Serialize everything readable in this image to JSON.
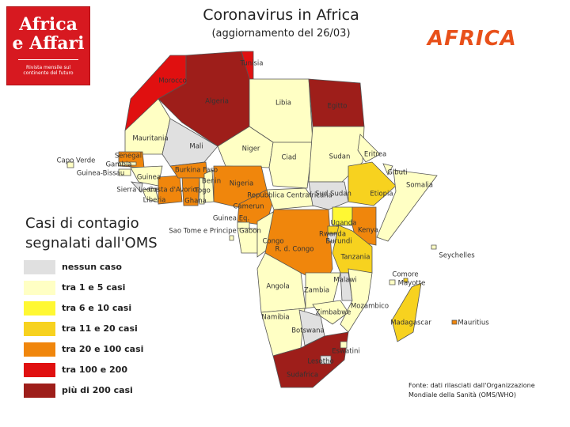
{
  "logo": {
    "title_line1": "Africa",
    "title_line2": "e Affari",
    "tagline": "Rivista mensile sul continente del futuro"
  },
  "brand": "AFRICA",
  "title": "Coronavirus in Africa",
  "subtitle": "(aggiornamento del 26/03)",
  "legend": {
    "title": "Casi di contagio segnalati dall'OMS",
    "items": [
      {
        "label": "nessun caso",
        "color": "#e0e0e0"
      },
      {
        "label": "tra 1 e 5 casi",
        "color": "#ffffc4"
      },
      {
        "label": "tra 6 e 10 casi",
        "color": "#fff833"
      },
      {
        "label": "tra 11 e 20 casi",
        "color": "#f7d21f"
      },
      {
        "label": "tra 20 e 100 casi",
        "color": "#f0860c"
      },
      {
        "label": "tra 100 e 200",
        "color": "#e01010"
      },
      {
        "label": "più di 200 casi",
        "color": "#9e1e1a"
      }
    ]
  },
  "countries": [
    {
      "label": "Morocco",
      "level": 5
    },
    {
      "label": "Algeria",
      "level": 6
    },
    {
      "label": "Tunisia",
      "level": 5
    },
    {
      "label": "Libia",
      "level": 1
    },
    {
      "label": "Egitto",
      "level": 6
    },
    {
      "label": "Mauritania",
      "level": 1
    },
    {
      "label": "Mali",
      "level": 0
    },
    {
      "label": "Niger",
      "level": 1
    },
    {
      "label": "Ciad",
      "level": 1
    },
    {
      "label": "Sudan",
      "level": 1
    },
    {
      "label": "Eritrea",
      "level": 1
    },
    {
      "label": "Etiopia",
      "level": 3
    },
    {
      "label": "Gibuti",
      "level": 1
    },
    {
      "label": "Somalia",
      "level": 1
    },
    {
      "label": "Senegal",
      "level": 4
    },
    {
      "label": "Gambia",
      "level": 1
    },
    {
      "label": "Guinea-Bissau",
      "level": 1
    },
    {
      "label": "Guinea",
      "level": 1
    },
    {
      "label": "Sierra Leone",
      "level": 0
    },
    {
      "label": "Liberia",
      "level": 1
    },
    {
      "label": "Costa d'Avorio",
      "level": 4
    },
    {
      "label": "Burkina Faso",
      "level": 4
    },
    {
      "label": "Ghana",
      "level": 4
    },
    {
      "label": "Togo",
      "level": 1
    },
    {
      "label": "Benin",
      "level": 1
    },
    {
      "label": "Nigeria",
      "level": 4
    },
    {
      "label": "Camerun",
      "level": 4
    },
    {
      "label": "Repubblica Centrafricana",
      "level": 1
    },
    {
      "label": "Sud Sudan",
      "level": 0
    },
    {
      "label": "Guinea Eq.",
      "level": 1
    },
    {
      "label": "Gabon",
      "level": 1
    },
    {
      "label": "Congo",
      "level": 1
    },
    {
      "label": "R. d. Congo",
      "level": 4
    },
    {
      "label": "Uganda",
      "level": 2
    },
    {
      "label": "Kenya",
      "level": 4
    },
    {
      "label": "Rwanda",
      "level": 3
    },
    {
      "label": "Burundi",
      "level": 0
    },
    {
      "label": "Tanzania",
      "level": 3
    },
    {
      "label": "Angola",
      "level": 1
    },
    {
      "label": "Zambia",
      "level": 1
    },
    {
      "label": "Malawi",
      "level": 0
    },
    {
      "label": "Mozambico",
      "level": 1
    },
    {
      "label": "Zimbabwe",
      "level": 1
    },
    {
      "label": "Namibia",
      "level": 1
    },
    {
      "label": "Botswana",
      "level": 0
    },
    {
      "label": "Sudafrica",
      "level": 6
    },
    {
      "label": "Lesotho",
      "level": 0
    },
    {
      "label": "Eswatini",
      "level": 1
    },
    {
      "label": "Madagascar",
      "level": 3
    },
    {
      "label": "Capo Verde",
      "level": 1
    },
    {
      "label": "Sao Tome e Principe",
      "level": 1
    },
    {
      "label": "Comore",
      "level": 1
    },
    {
      "label": "Mayotte",
      "level": 3
    },
    {
      "label": "Seychelles",
      "level": 1
    },
    {
      "label": "Mauritius",
      "level": 4
    }
  ],
  "source": "Fonte: dati rilasciati dall'Organizzazione Mondiale della Sanità (OMS/WHO)"
}
